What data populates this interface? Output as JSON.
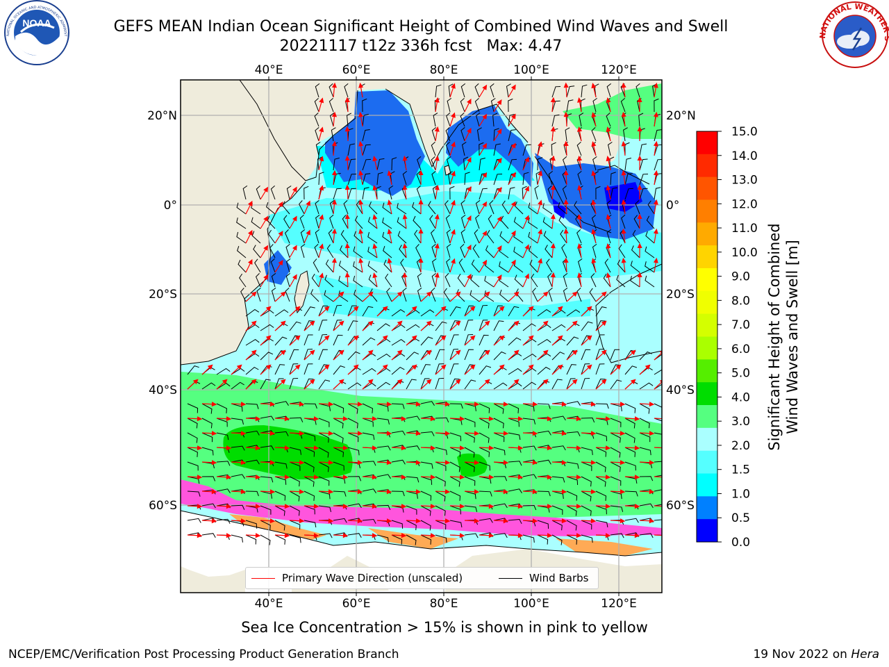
{
  "title": {
    "line1": "GEFS MEAN Indian Ocean Significant Height of Combined Wind Waves and Swell",
    "line2": "20221117 t12z 336h fcst   Max: 4.47"
  },
  "map": {
    "lon_ticks": [
      "40°E",
      "60°E",
      "80°E",
      "100°E",
      "120°E"
    ],
    "lat_ticks_left": [
      "20°N",
      "0°",
      "20°S",
      "40°S",
      "60°S"
    ],
    "lat_ticks_right": [
      "20°N",
      "0°",
      "20°S",
      "40°S",
      "60°S"
    ],
    "land_color": "#efecdc",
    "grid": true
  },
  "legend": {
    "wave_dir": "Primary Wave Direction (unscaled)",
    "wind_barbs": "Wind Barbs",
    "wave_color": "#ff0000",
    "barb_color": "#000000"
  },
  "colorbar": {
    "label_line1": "Significant Height of Combined",
    "label_line2": "Wind Waves and Swell [m]",
    "ticks": [
      "15.0",
      "14.0",
      "13.0",
      "12.0",
      "11.0",
      "10.0",
      "9.0",
      "8.0",
      "7.0",
      "6.0",
      "5.0",
      "4.0",
      "3.0",
      "2.0",
      "1.5",
      "1.0",
      "0.5",
      "0.0"
    ],
    "colors_top_to_bottom": [
      "#ff0000",
      "#ff2a00",
      "#ff5500",
      "#ff7f00",
      "#ffaa00",
      "#ffd400",
      "#ffff00",
      "#f0ff00",
      "#d4ff00",
      "#aaff00",
      "#55ee00",
      "#00dd00",
      "#55ff80",
      "#aaffff",
      "#55ffff",
      "#00ffff",
      "#0080ff",
      "#0000ff"
    ]
  },
  "ice_note": "Sea Ice Concentration > 15% is shown in pink to yellow",
  "credit": "NCEP/EMC/Verification Post Processing Product Generation Branch",
  "date": "19 Nov 2022 on",
  "host": "Hera",
  "logos": {
    "noaa_text": "NOAA",
    "noaa_ring": "NATIONAL OCEANIC AND ATMOSPHERIC ADMINISTRATION · U.S. DEPARTMENT OF COMMERCE",
    "nws_ring": "NATIONAL WEATHER SERVICE"
  }
}
